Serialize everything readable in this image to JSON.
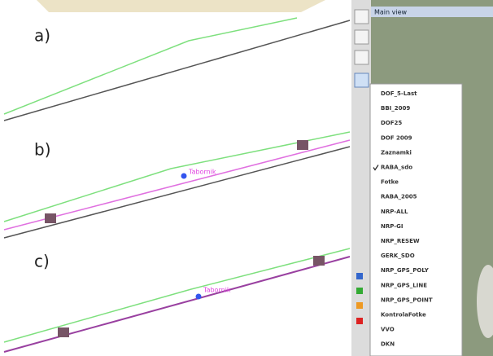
{
  "panels": [
    {
      "label": "a)"
    },
    {
      "label": "b)",
      "point_label": "Tabornik"
    },
    {
      "label": "c)",
      "point_label": "Tabornik"
    }
  ],
  "window": {
    "title": "Main view"
  },
  "menu": {
    "items": [
      "DOF_5-Last",
      "BBI_2009",
      "DOF25",
      "DOF 2009",
      "Zaznamki",
      "RABA_sdo",
      "Fotke",
      "RABA_2005",
      "NRP-ALL",
      "NRP-GI",
      "NRP_RESEW",
      "GERK_SDO",
      "NRP_GPS_POLY",
      "NRP_GPS_LINE",
      "NRP_GPS_POINT",
      "KontrolaFotke",
      "VVO",
      "DKN"
    ],
    "checked": 5
  }
}
